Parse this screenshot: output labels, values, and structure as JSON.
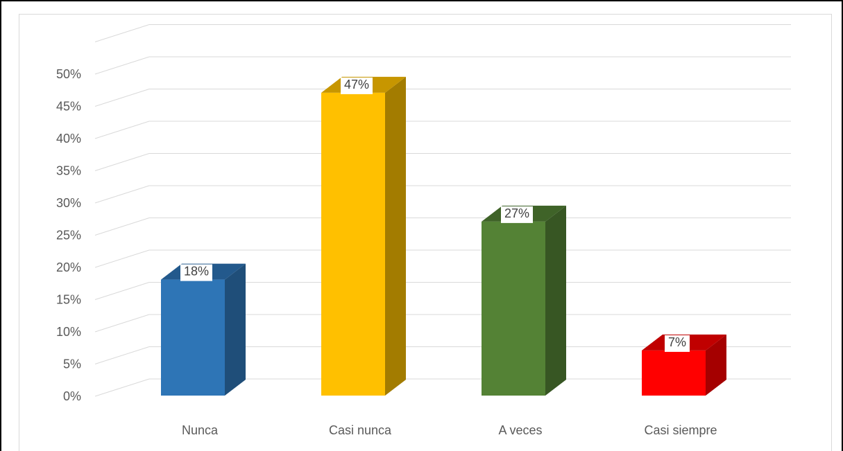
{
  "chart_data": {
    "type": "bar",
    "style": "3d-column",
    "title": "",
    "xlabel": "",
    "ylabel": "",
    "ylim": [
      0,
      50
    ],
    "yticks": [
      "0%",
      "5%",
      "10%",
      "15%",
      "20%",
      "25%",
      "30%",
      "35%",
      "40%",
      "45%",
      "50%"
    ],
    "categories": [
      "Nunca",
      "Casi nunca",
      "A veces",
      "Casi siempre"
    ],
    "values": [
      18,
      47,
      27,
      7
    ],
    "data_labels": [
      "18%",
      "47%",
      "27%",
      "7%"
    ],
    "grid": true,
    "legend": "none",
    "colors": {
      "front": [
        "#2e75b6",
        "#ffc000",
        "#548235",
        "#ff0000"
      ],
      "side": [
        "#1f4e79",
        "#a37c00",
        "#375623",
        "#a50000"
      ],
      "top": [
        "#23598c",
        "#c79600",
        "#3f6328",
        "#c00000"
      ],
      "grid": "#d9d9d9",
      "text": "#595959"
    }
  }
}
